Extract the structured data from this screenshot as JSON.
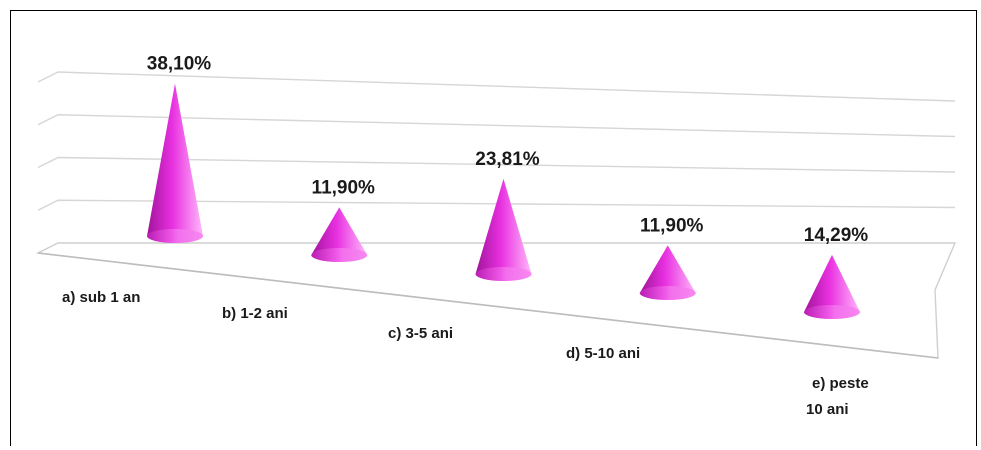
{
  "chart_data": {
    "type": "bar",
    "style": "3d-cone",
    "categories": [
      "a)  sub 1 an",
      "b)  1-2 ani",
      "c)  3-5 ani",
      "d)  5-10 ani",
      "e) peste 10 ani"
    ],
    "category_lines": [
      [
        "a)  sub 1 an"
      ],
      [
        "b)  1-2 ani"
      ],
      [
        "c)  3-5 ani"
      ],
      [
        "d)  5-10 ani"
      ],
      [
        "e) peste",
        "10 ani"
      ]
    ],
    "values": [
      38.1,
      11.9,
      23.81,
      11.9,
      14.29
    ],
    "data_labels": [
      "38,10%",
      "11,90%",
      "23,81%",
      "11,90%",
      "14,29%"
    ],
    "unit": "%",
    "ylim": [
      0,
      40
    ],
    "grid": true,
    "legend": "none",
    "colors": {
      "cone": "#e830e0",
      "cone_light": "#ffb8fa",
      "cone_dark": "#a0149a",
      "grid": "#d6d6d6"
    }
  }
}
